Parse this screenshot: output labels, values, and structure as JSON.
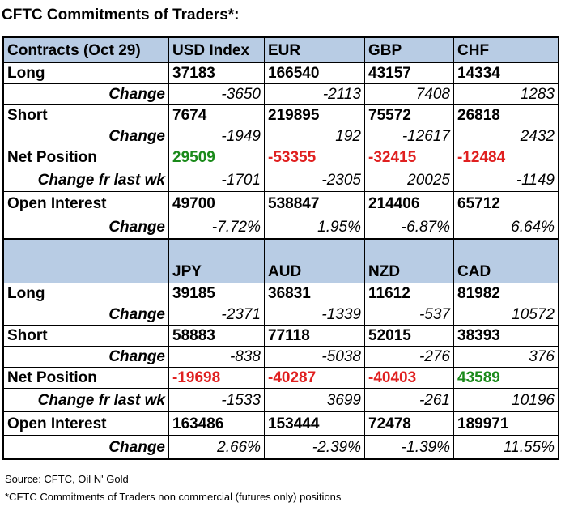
{
  "title": "CFTC Commitments of Traders*:",
  "table1": {
    "header": [
      "Contracts (Oct 29)",
      "USD Index",
      "EUR",
      "GBP",
      "CHF"
    ],
    "long": {
      "label": "Long",
      "values": [
        "37183",
        "166540",
        "43157",
        "14334"
      ]
    },
    "long_change": {
      "label": "Change",
      "values": [
        "-3650",
        "-2113",
        "7408",
        "1283"
      ]
    },
    "short": {
      "label": "Short",
      "values": [
        "7674",
        "219895",
        "75572",
        "26818"
      ]
    },
    "short_change": {
      "label": "Change",
      "values": [
        "-1949",
        "192",
        "-12617",
        "2432"
      ]
    },
    "net": {
      "label": "Net Position",
      "values": [
        "29509",
        "-53355",
        "-32415",
        "-12484"
      ],
      "colors": [
        "green",
        "red",
        "red",
        "red"
      ]
    },
    "net_change": {
      "label": "Change fr last wk",
      "values": [
        "-1701",
        "-2305",
        "20025",
        "-1149"
      ]
    },
    "oi": {
      "label": "Open Interest",
      "values": [
        "49700",
        "538847",
        "214406",
        "65712"
      ]
    },
    "oi_change": {
      "label": "Change",
      "values": [
        "-7.72%",
        "1.95%",
        "-6.87%",
        "6.64%"
      ]
    }
  },
  "table2": {
    "header": [
      "",
      "JPY",
      "AUD",
      "NZD",
      "CAD"
    ],
    "long": {
      "label": "Long",
      "values": [
        "39185",
        "36831",
        "11612",
        "81982"
      ]
    },
    "long_change": {
      "label": "Change",
      "values": [
        "-2371",
        "-1339",
        "-537",
        "10572"
      ]
    },
    "short": {
      "label": "Short",
      "values": [
        "58883",
        "77118",
        "52015",
        "38393"
      ]
    },
    "short_change": {
      "label": "Change",
      "values": [
        "-838",
        "-5038",
        "-276",
        "376"
      ]
    },
    "net": {
      "label": "Net Position",
      "values": [
        "-19698",
        "-40287",
        "-40403",
        "43589"
      ],
      "colors": [
        "red",
        "red",
        "red",
        "green"
      ]
    },
    "net_change": {
      "label": "Change fr last wk",
      "values": [
        "-1533",
        "3699",
        "-261",
        "10196"
      ]
    },
    "oi": {
      "label": "Open Interest",
      "values": [
        "163486",
        "153444",
        "72478",
        "189971"
      ]
    },
    "oi_change": {
      "label": "Change",
      "values": [
        "2.66%",
        "-2.39%",
        "-1.39%",
        "11.55%"
      ]
    }
  },
  "colors": {
    "header_bg": "#b8cce4",
    "positive": "#1a8a1a",
    "negative": "#e02020"
  },
  "source": "Source: CFTC, Oil N' Gold",
  "footnote": "*CFTC Commitments of Traders non commercial (futures only) positions"
}
